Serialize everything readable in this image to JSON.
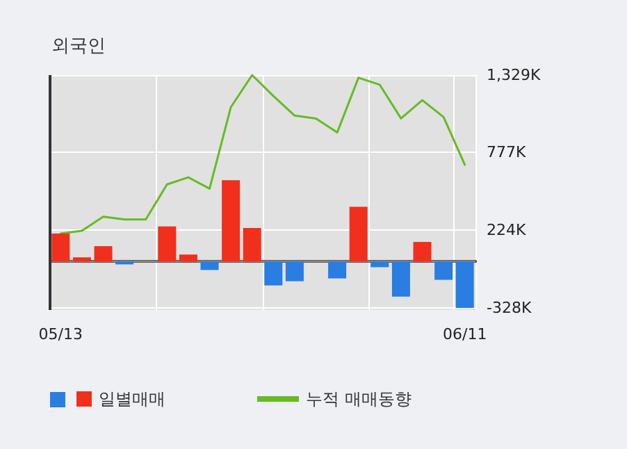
{
  "chart_data": {
    "type": "bar",
    "title": "외국인",
    "categories": [
      "05/13",
      null,
      null,
      null,
      null,
      null,
      null,
      null,
      null,
      null,
      null,
      null,
      null,
      null,
      null,
      null,
      null,
      null,
      null,
      "06/11"
    ],
    "series": [
      {
        "name": "일별매매",
        "color": "#f0301c",
        "values": [
          200,
          30,
          110,
          -20,
          0,
          250,
          50,
          -60,
          580,
          240,
          -170,
          -140,
          0,
          -120,
          390,
          -40,
          -250,
          140,
          -130,
          -330
        ],
        "colors": [
          "#f0301c",
          "#f0301c",
          "#f0301c",
          "#2a7de1",
          "#f0301c",
          "#f0301c",
          "#f0301c",
          "#2a7de1",
          "#f0301c",
          "#f0301c",
          "#2a7de1",
          "#2a7de1",
          "#f0301c",
          "#2a7de1",
          "#f0301c",
          "#2a7de1",
          "#2a7de1",
          "#f0301c",
          "#2a7de1",
          "#2a7de1"
        ]
      },
      {
        "name": "누적 매매동향",
        "type": "line",
        "color": "#66bb22",
        "values": [
          200,
          220,
          320,
          300,
          300,
          550,
          600,
          520,
          1100,
          1329,
          1180,
          1040,
          1020,
          920,
          1310,
          1260,
          1020,
          1150,
          1030,
          690
        ]
      }
    ],
    "ylim": [
      -345,
      1329
    ],
    "yticks": [
      {
        "value": 1329,
        "label": "1,329K"
      },
      {
        "value": 777,
        "label": "777K"
      },
      {
        "value": 224,
        "label": "224K"
      },
      {
        "value": -328,
        "label": "-328K"
      }
    ],
    "ref_lines": [
      {
        "axis": "y",
        "value": 0,
        "color": "#888888"
      }
    ],
    "grid": true,
    "legend": "bottom",
    "marker": "none",
    "line_style": "solid"
  }
}
